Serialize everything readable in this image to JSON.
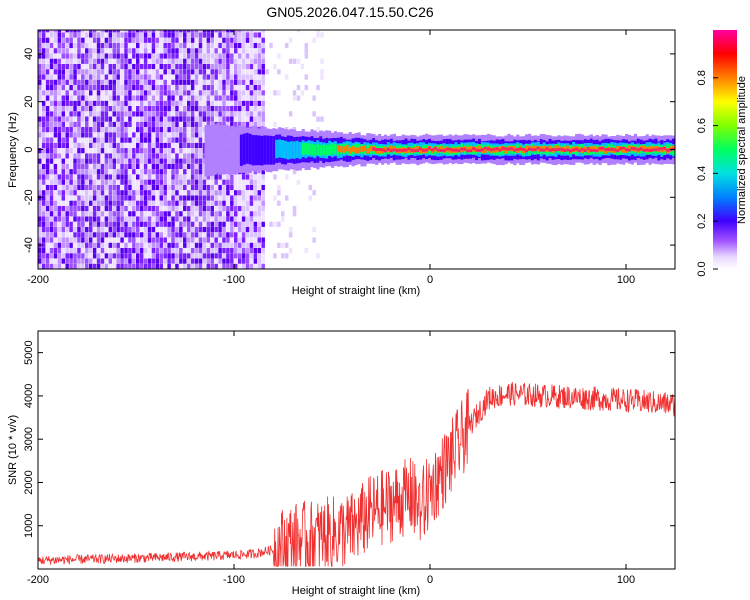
{
  "title": "GN05.2026.047.15.50.C26",
  "chart_data": [
    {
      "type": "heatmap",
      "xlabel": "Height of straight line (km)",
      "ylabel": "Frequency (Hz)",
      "xlim": [
        -200,
        125
      ],
      "ylim": [
        -50,
        50
      ],
      "xticks": [
        -200,
        -100,
        0,
        100
      ],
      "yticks": [
        -40,
        -20,
        0,
        20,
        40
      ],
      "colorbar": {
        "label": "Normalized spectral amplitude",
        "ticks": [
          "0.0",
          "0.2",
          "0.4",
          "0.6",
          "0.8"
        ],
        "tick_values": [
          0.0,
          0.2,
          0.4,
          0.6,
          0.8
        ],
        "range": [
          0,
          1
        ]
      },
      "description_regions": {
        "noise_until_km": -85,
        "faint_noise_until_km": -55,
        "signal_start_km": -115,
        "signal_center_hz": 0
      }
    },
    {
      "type": "line",
      "xlabel": "Height of straight line (km)",
      "ylabel": "SNR (10 * v/v)",
      "xlim": [
        -200,
        125
      ],
      "ylim": [
        0,
        5500
      ],
      "xticks": [
        -200,
        -100,
        0,
        100
      ],
      "yticks": [
        1000,
        2000,
        3000,
        4000,
        5000
      ],
      "color": "#f03030",
      "series": [
        {
          "name": "SNR",
          "x": [
            -200,
            -150,
            -110,
            -90,
            -80,
            -70,
            -60,
            -50,
            -40,
            -30,
            -20,
            -10,
            -5,
            0,
            10,
            20,
            30,
            40,
            60,
            80,
            100,
            125
          ],
          "values": [
            200,
            250,
            300,
            350,
            450,
            650,
            700,
            800,
            900,
            1300,
            1500,
            1700,
            1400,
            1800,
            2500,
            3300,
            3950,
            4050,
            4000,
            3950,
            3900,
            3800
          ]
        }
      ]
    }
  ]
}
